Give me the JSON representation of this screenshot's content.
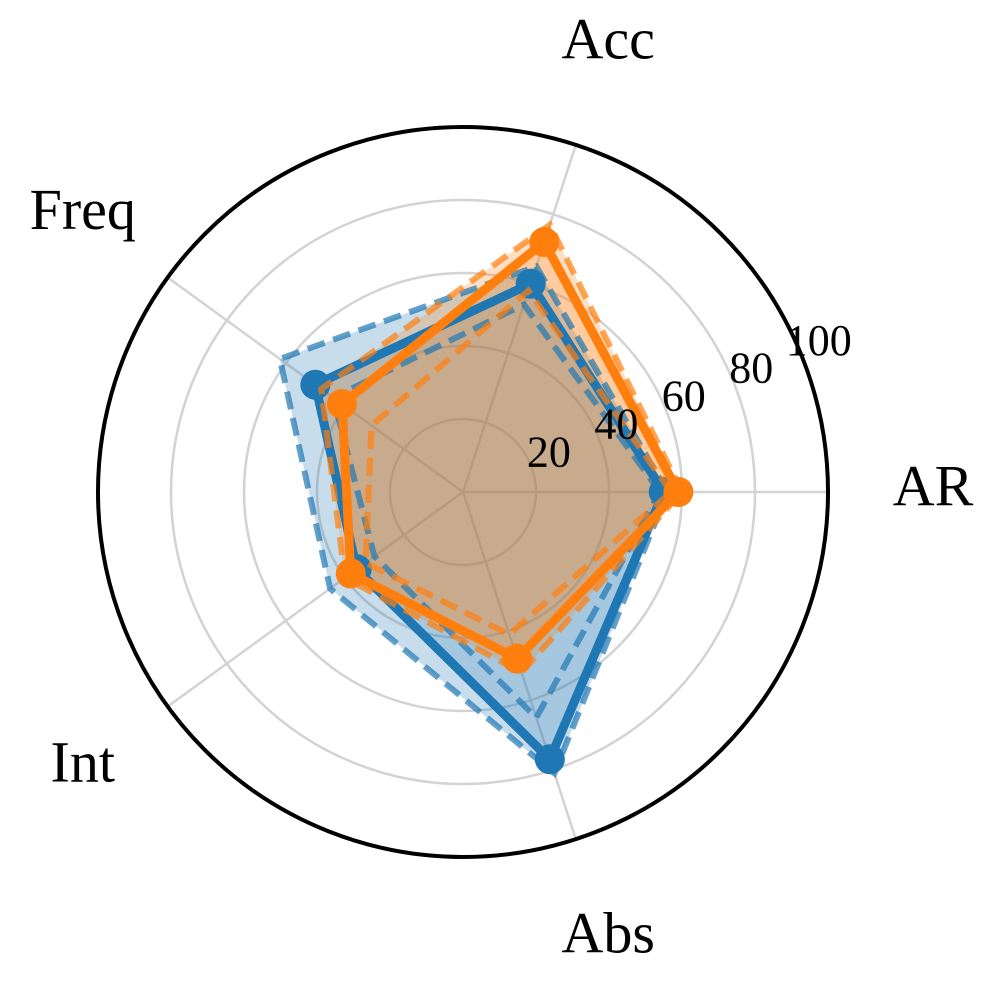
{
  "chart_data": {
    "type": "radar",
    "categories": [
      "AR",
      "Acc",
      "Freq",
      "Int",
      "Abs"
    ],
    "rlim": [
      0,
      100
    ],
    "rticks": [
      20,
      40,
      60,
      80,
      100
    ],
    "grid": true,
    "series": [
      {
        "color": "#1f77b4",
        "values": [
          55,
          60,
          50,
          36,
          77
        ],
        "lower": [
          54,
          54,
          44,
          30,
          65
        ],
        "upper": [
          56,
          65,
          62,
          45,
          81
        ]
      },
      {
        "color": "#ff7f0e",
        "values": [
          59,
          72,
          41,
          38,
          48
        ],
        "lower": [
          57,
          58,
          31,
          33,
          41
        ],
        "upper": [
          60,
          77,
          48,
          40,
          52
        ]
      }
    ]
  }
}
